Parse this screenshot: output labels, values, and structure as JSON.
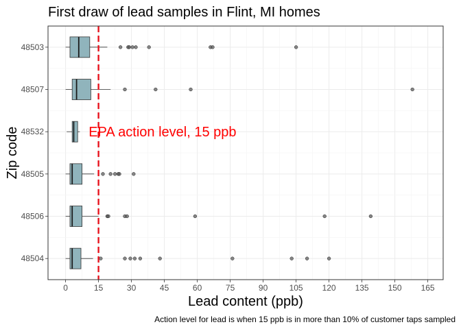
{
  "chart_data": {
    "type": "boxplot",
    "title": "First draw of lead samples in Flint, MI homes",
    "xlabel": "Lead content (ppb)",
    "ylabel": "Zip code",
    "caption": "Action level for lead is when 15 ppb is in more than 10% of customer taps sampled",
    "xlim": [
      -8,
      172
    ],
    "x_ticks": [
      0,
      15,
      30,
      45,
      60,
      75,
      90,
      105,
      120,
      135,
      150,
      165
    ],
    "grid": true,
    "box_color": "#90b4bc",
    "outlier_color": "#555555",
    "reference_line": {
      "x": 15,
      "color": "#e8141e",
      "style": "dashed"
    },
    "annotation": {
      "text": "EPA action level, 15 ppb",
      "x": 10.5,
      "y": "48532",
      "color": "#ff0000"
    },
    "categories": [
      "48503",
      "48507",
      "48532",
      "48505",
      "48506",
      "48504"
    ],
    "series": [
      {
        "zip": "48503",
        "whisker_low": 0,
        "q1": 2,
        "median": 6,
        "q3": 11,
        "whisker_high": 19,
        "outliers": [
          25,
          28.5,
          29,
          30.5,
          32,
          38,
          66,
          67,
          105
        ]
      },
      {
        "zip": "48507",
        "whisker_low": 0,
        "q1": 3,
        "median": 5,
        "q3": 11.5,
        "whisker_high": 20.5,
        "outliers": [
          27,
          41,
          57,
          158
        ]
      },
      {
        "zip": "48532",
        "whisker_low": 0.5,
        "q1": 3,
        "median": 3.7,
        "q3": 5.5,
        "whisker_high": 6.5,
        "outliers": []
      },
      {
        "zip": "48505",
        "whisker_low": 0,
        "q1": 2,
        "median": 3,
        "q3": 7.5,
        "whisker_high": 13,
        "outliers": [
          17,
          20.5,
          22.5,
          24,
          24.5,
          31
        ]
      },
      {
        "zip": "48506",
        "whisker_low": 0,
        "q1": 2,
        "median": 3,
        "q3": 7.5,
        "whisker_high": 15,
        "outliers": [
          19,
          19.5,
          27,
          28,
          59,
          118,
          139
        ]
      },
      {
        "zip": "48504",
        "whisker_low": 0,
        "q1": 2,
        "median": 3,
        "q3": 7,
        "whisker_high": 12.5,
        "outliers": [
          16,
          27,
          29.5,
          31.5,
          34,
          43,
          76,
          103,
          110,
          120
        ]
      }
    ]
  }
}
